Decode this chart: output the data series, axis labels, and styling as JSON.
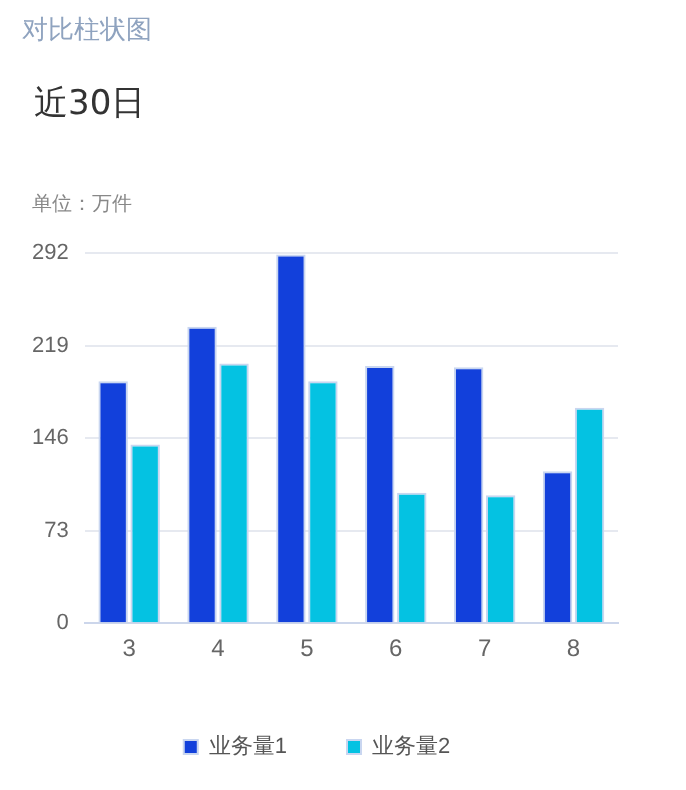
{
  "chart_data": {
    "type": "bar",
    "title": "近30日",
    "ylabel": "单位：万件",
    "annotations": [
      "对比柱状图"
    ],
    "categories": [
      "3",
      "4",
      "5",
      "6",
      "7",
      "8"
    ],
    "series": [
      {
        "name": "业务量1",
        "color": "#1240db",
        "values": [
          191,
          234,
          291,
          203,
          202,
          120
        ]
      },
      {
        "name": "业务量2",
        "color": "#04c2e2",
        "values": [
          141,
          205,
          191,
          103,
          101,
          170
        ]
      }
    ],
    "ylim": [
      0,
      292
    ],
    "yticks": [
      0,
      73,
      146,
      219,
      292
    ],
    "grid": "y",
    "legend": "bottom"
  }
}
